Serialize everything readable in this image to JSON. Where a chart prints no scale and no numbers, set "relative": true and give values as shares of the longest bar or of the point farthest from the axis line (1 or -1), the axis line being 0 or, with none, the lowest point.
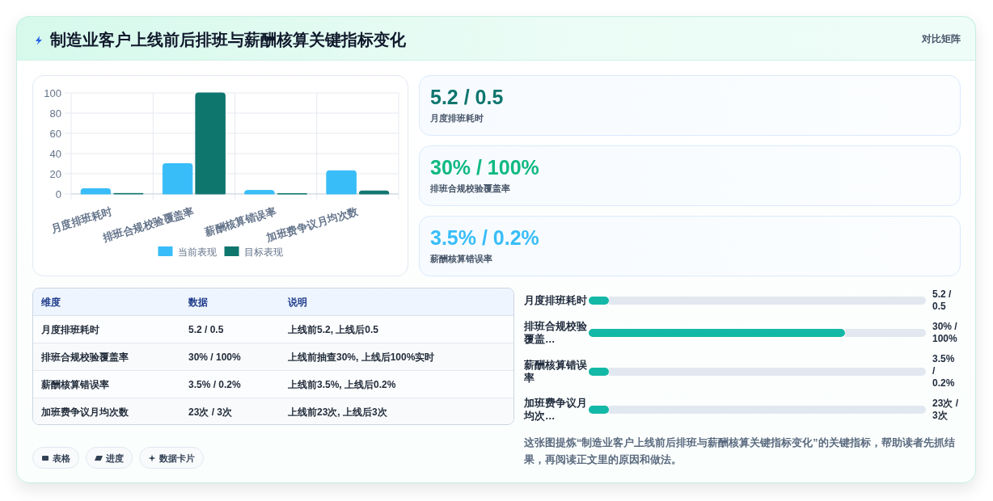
{
  "chart_data": [
    {
      "type": "other",
      "title": "制造业客户上线前后排班与薪酬核算关键指标变化",
      "annotations": [
        "对比矩阵"
      ]
    },
    {
      "type": "bar",
      "categories": [
        "月度排班耗时",
        "排班合规校验覆盖率",
        "薪酬核算错误率",
        "加班费争议月均次数"
      ],
      "series": [
        {
          "name": "当前表现",
          "color": "#38bdf8",
          "values": [
            5.2,
            30,
            3.5,
            23
          ]
        },
        {
          "name": "目标表现",
          "color": "#0f766e",
          "values": [
            0.5,
            100,
            0.2,
            3
          ]
        }
      ],
      "ylim": [
        0,
        100
      ],
      "yticks": [
        0,
        20,
        40,
        60,
        80,
        100
      ],
      "grid": true,
      "legend": "bottom"
    },
    {
      "type": "other",
      "categories": [
        "月度排班耗时",
        "排班合规校验覆盖率",
        "薪酬核算错误率"
      ],
      "value_labels": [
        "5.2 / 0.5",
        "30% / 100%",
        "3.5% / 0.2%"
      ]
    },
    {
      "type": "other",
      "categories": [
        "维度",
        "数据",
        "说明"
      ],
      "annotations": [
        "月度排班耗时",
        "5.2 / 0.5",
        "上线前5.2, 上线后0.5",
        "排班合规校验覆盖率",
        "30% / 100%",
        "上线前抽查30%, 上线后100%实时",
        "薪酬核算错误率",
        "3.5% / 0.2%",
        "上线前3.5%, 上线后0.2%",
        "加班费争议月均次数",
        "23次 / 3次",
        "上线前23次, 上线后3次"
      ]
    },
    {
      "type": "bar",
      "orientation": "horizontal",
      "stacked": true,
      "relative": true,
      "categories": [
        "月度排班耗时",
        "排班合规校验覆盖…",
        "薪酬核算错误率",
        "加班费争议月均次…"
      ],
      "series": [
        {
          "color": "#14b8a6",
          "values": [
            0.06,
            0.76,
            0.06,
            0.06
          ]
        },
        {
          "color": "#e2e8f0",
          "values": [
            0.94,
            0.24,
            0.94,
            0.94
          ]
        }
      ],
      "value_labels": [
        "5.2 / 0.5",
        "30% / 100%",
        "3.5% / 0.2%",
        "23次 / 3次"
      ]
    },
    {
      "type": "other",
      "categories": [
        "表格",
        "进度",
        "数据卡片"
      ],
      "annotations": [
        "这张图提炼“制造业客户上线前后排班与薪酬核算关键指标变化”的关键指标，帮助读者先抓结果，再阅读正文里的原因和做法。"
      ]
    }
  ]
}
